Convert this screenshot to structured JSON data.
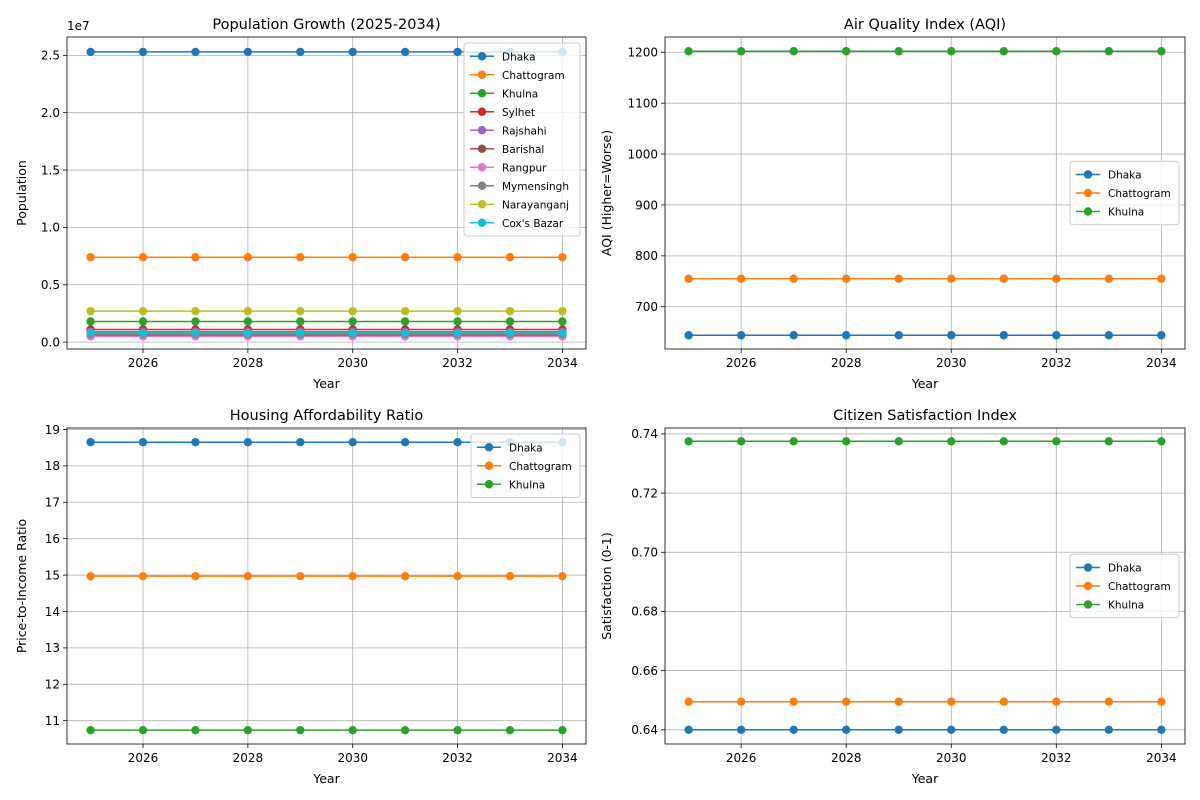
{
  "figure": {
    "chart_data": [
      {
        "type": "line",
        "title": "Population Growth (2025-2034)",
        "xlabel": "Year",
        "ylabel": "Population",
        "offset_label": "1e7",
        "x": [
          2025,
          2026,
          2027,
          2028,
          2029,
          2030,
          2031,
          2032,
          2033,
          2034
        ],
        "xlim": [
          2024.55,
          2034.45
        ],
        "ylim": [
          -600000,
          26600000
        ],
        "x_ticks": [
          2026,
          2028,
          2030,
          2032,
          2034
        ],
        "x_tick_labels": [
          "2026",
          "2028",
          "2030",
          "2032",
          "2034"
        ],
        "y_ticks": [
          0,
          5000000,
          10000000,
          15000000,
          20000000,
          25000000
        ],
        "y_tick_labels": [
          "0.0",
          "0.5",
          "1.0",
          "1.5",
          "2.0",
          "2.5"
        ],
        "grid": true,
        "legend_position": "upper-right",
        "series": [
          {
            "name": "Dhaka",
            "color": "#1f77b4",
            "values": [
              25300000,
              25300000,
              25300000,
              25300000,
              25300000,
              25300000,
              25300000,
              25300000,
              25300000,
              25300000
            ]
          },
          {
            "name": "Chattogram",
            "color": "#ff7f0e",
            "values": [
              7400000,
              7400000,
              7400000,
              7400000,
              7400000,
              7400000,
              7400000,
              7400000,
              7400000,
              7400000
            ]
          },
          {
            "name": "Khulna",
            "color": "#2ca02c",
            "values": [
              1800000,
              1800000,
              1800000,
              1800000,
              1800000,
              1800000,
              1800000,
              1800000,
              1800000,
              1800000
            ]
          },
          {
            "name": "Sylhet",
            "color": "#d62728",
            "values": [
              1100000,
              1100000,
              1100000,
              1100000,
              1100000,
              1100000,
              1100000,
              1100000,
              1100000,
              1100000
            ]
          },
          {
            "name": "Rajshahi",
            "color": "#9467bd",
            "values": [
              900000,
              900000,
              900000,
              900000,
              900000,
              900000,
              900000,
              900000,
              900000,
              900000
            ]
          },
          {
            "name": "Barishal",
            "color": "#8c564b",
            "values": [
              600000,
              600000,
              600000,
              600000,
              600000,
              600000,
              600000,
              600000,
              600000,
              600000
            ]
          },
          {
            "name": "Rangpur",
            "color": "#e377c2",
            "values": [
              500000,
              500000,
              500000,
              500000,
              500000,
              500000,
              500000,
              500000,
              500000,
              500000
            ]
          },
          {
            "name": "Mymensingh",
            "color": "#7f7f7f",
            "values": [
              700000,
              700000,
              700000,
              700000,
              700000,
              700000,
              700000,
              700000,
              700000,
              700000
            ]
          },
          {
            "name": "Narayanganj",
            "color": "#bcbd22",
            "values": [
              2700000,
              2700000,
              2700000,
              2700000,
              2700000,
              2700000,
              2700000,
              2700000,
              2700000,
              2700000
            ]
          },
          {
            "name": "Cox's Bazar",
            "color": "#17becf",
            "values": [
              800000,
              800000,
              800000,
              800000,
              800000,
              800000,
              800000,
              800000,
              800000,
              800000
            ]
          }
        ]
      },
      {
        "type": "line",
        "title": "Air Quality Index (AQI)",
        "xlabel": "Year",
        "ylabel": "AQI (Higher=Worse)",
        "offset_label": "",
        "x": [
          2025,
          2026,
          2027,
          2028,
          2029,
          2030,
          2031,
          2032,
          2033,
          2034
        ],
        "xlim": [
          2024.55,
          2034.45
        ],
        "ylim": [
          617,
          1230
        ],
        "x_ticks": [
          2026,
          2028,
          2030,
          2032,
          2034
        ],
        "x_tick_labels": [
          "2026",
          "2028",
          "2030",
          "2032",
          "2034"
        ],
        "y_ticks": [
          700,
          800,
          900,
          1000,
          1100,
          1200
        ],
        "y_tick_labels": [
          "700",
          "800",
          "900",
          "1000",
          "1100",
          "1200"
        ],
        "grid": true,
        "legend_position": "center-right",
        "series": [
          {
            "name": "Dhaka",
            "color": "#1f77b4",
            "values": [
              644,
              644,
              644,
              644,
              644,
              644,
              644,
              644,
              644,
              644
            ]
          },
          {
            "name": "Chattogram",
            "color": "#ff7f0e",
            "values": [
              755,
              755,
              755,
              755,
              755,
              755,
              755,
              755,
              755,
              755
            ]
          },
          {
            "name": "Khulna",
            "color": "#2ca02c",
            "values": [
              1202,
              1202,
              1202,
              1202,
              1202,
              1202,
              1202,
              1202,
              1202,
              1202
            ]
          }
        ]
      },
      {
        "type": "line",
        "title": "Housing Affordability Ratio",
        "xlabel": "Year",
        "ylabel": "Price-to-Income Ratio",
        "offset_label": "",
        "x": [
          2025,
          2026,
          2027,
          2028,
          2029,
          2030,
          2031,
          2032,
          2033,
          2034
        ],
        "xlim": [
          2024.55,
          2034.45
        ],
        "ylim": [
          10.36,
          19.04
        ],
        "x_ticks": [
          2026,
          2028,
          2030,
          2032,
          2034
        ],
        "x_tick_labels": [
          "2026",
          "2028",
          "2030",
          "2032",
          "2034"
        ],
        "y_ticks": [
          11,
          12,
          13,
          14,
          15,
          16,
          17,
          18,
          19
        ],
        "y_tick_labels": [
          "11",
          "12",
          "13",
          "14",
          "15",
          "16",
          "17",
          "18",
          "19"
        ],
        "grid": true,
        "legend_position": "upper-right",
        "series": [
          {
            "name": "Dhaka",
            "color": "#1f77b4",
            "values": [
              18.65,
              18.65,
              18.65,
              18.65,
              18.65,
              18.65,
              18.65,
              18.65,
              18.65,
              18.65
            ]
          },
          {
            "name": "Chattogram",
            "color": "#ff7f0e",
            "values": [
              14.97,
              14.97,
              14.97,
              14.97,
              14.97,
              14.97,
              14.97,
              14.97,
              14.97,
              14.97
            ]
          },
          {
            "name": "Khulna",
            "color": "#2ca02c",
            "values": [
              10.74,
              10.74,
              10.74,
              10.74,
              10.74,
              10.74,
              10.74,
              10.74,
              10.74,
              10.74
            ]
          }
        ]
      },
      {
        "type": "line",
        "title": "Citizen Satisfaction Index",
        "xlabel": "Year",
        "ylabel": "Satisfaction (0-1)",
        "offset_label": "",
        "x": [
          2025,
          2026,
          2027,
          2028,
          2029,
          2030,
          2031,
          2032,
          2033,
          2034
        ],
        "xlim": [
          2024.55,
          2034.45
        ],
        "ylim": [
          0.6352,
          0.742
        ],
        "x_ticks": [
          2026,
          2028,
          2030,
          2032,
          2034
        ],
        "x_tick_labels": [
          "2026",
          "2028",
          "2030",
          "2032",
          "2034"
        ],
        "y_ticks": [
          0.64,
          0.66,
          0.68,
          0.7,
          0.72,
          0.74
        ],
        "y_tick_labels": [
          "0.64",
          "0.66",
          "0.68",
          "0.70",
          "0.72",
          "0.74"
        ],
        "grid": true,
        "legend_position": "center-right",
        "series": [
          {
            "name": "Dhaka",
            "color": "#1f77b4",
            "values": [
              0.64,
              0.64,
              0.64,
              0.64,
              0.64,
              0.64,
              0.64,
              0.64,
              0.64,
              0.64
            ]
          },
          {
            "name": "Chattogram",
            "color": "#ff7f0e",
            "values": [
              0.6495,
              0.6495,
              0.6495,
              0.6495,
              0.6495,
              0.6495,
              0.6495,
              0.6495,
              0.6495,
              0.6495
            ]
          },
          {
            "name": "Khulna",
            "color": "#2ca02c",
            "values": [
              0.7375,
              0.7375,
              0.7375,
              0.7375,
              0.7375,
              0.7375,
              0.7375,
              0.7375,
              0.7375,
              0.7375
            ]
          }
        ]
      }
    ]
  }
}
